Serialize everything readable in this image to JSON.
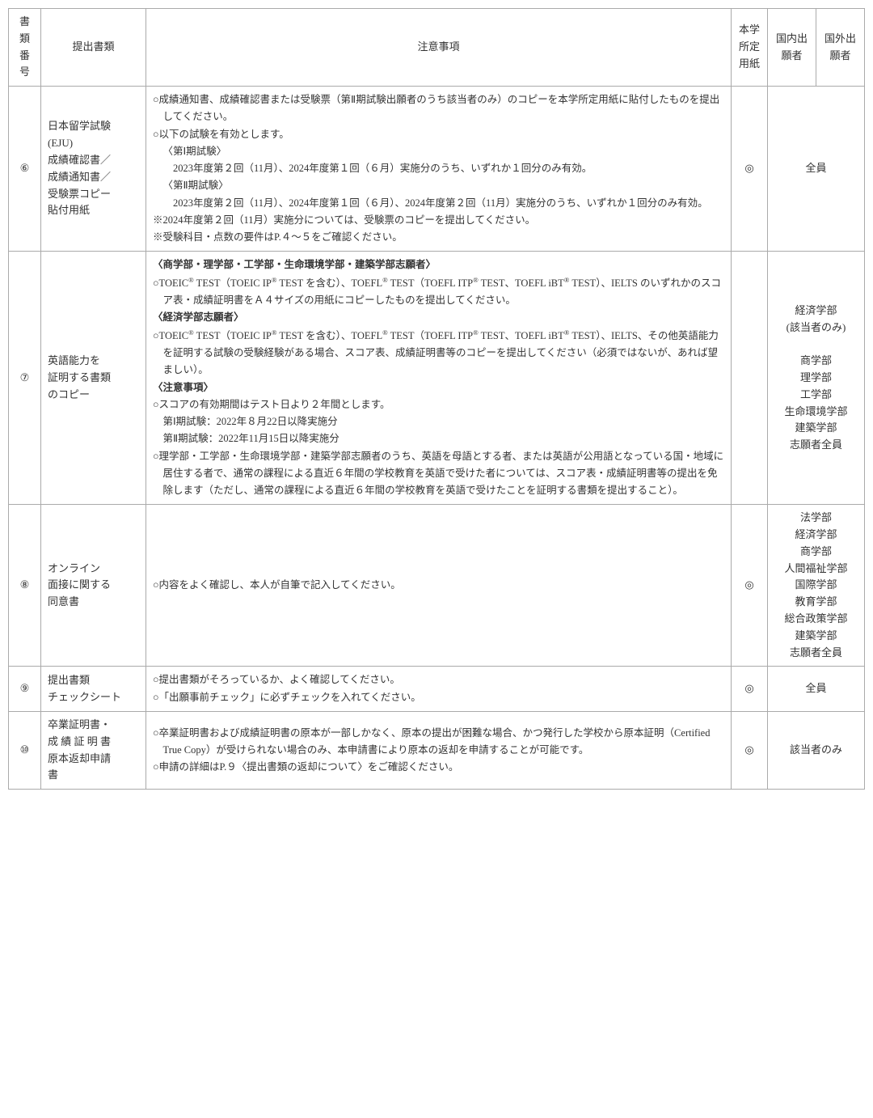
{
  "headers": {
    "num": "書類番号",
    "doc": "提出書類",
    "notes": "注意事項",
    "form": "本学所定用紙",
    "domestic": "国内出願者",
    "overseas": "国外出願者"
  },
  "rows": [
    {
      "num": "⑥",
      "doc": "日本留学試験\n(EJU)\n成績確認書／\n成績通知書／\n受験票コピー\n貼付用紙",
      "form": "◎",
      "applicants": "全員",
      "notes": [
        {
          "cls": "hanging",
          "t": "○成績通知書、成績確認書または受験票（第Ⅱ期試験出願者のうち該当者のみ）のコピーを本学所定用紙に貼付したものを提出してください。"
        },
        {
          "cls": "",
          "t": "○以下の試験を有効とします。"
        },
        {
          "cls": "indent",
          "t": "〈第Ⅰ期試験〉"
        },
        {
          "cls": "indent2",
          "t": "2023年度第２回（11月）、2024年度第１回（６月）実施分のうち、いずれか１回分のみ有効。"
        },
        {
          "cls": "indent",
          "t": "〈第Ⅱ期試験〉"
        },
        {
          "cls": "indent2",
          "t": "2023年度第２回（11月）、2024年度第１回（６月）、2024年度第２回（11月）実施分のうち、いずれか１回分のみ有効。"
        },
        {
          "cls": "hanging",
          "t": "※2024年度第２回（11月）実施分については、受験票のコピーを提出してください。"
        },
        {
          "cls": "",
          "t": "※受験科目・点数の要件はP.４～５をご確認ください。"
        }
      ]
    },
    {
      "num": "⑦",
      "doc": "英語能力を\n証明する書類\nのコピー",
      "form": "",
      "applicants": "経済学部\n(該当者のみ)\n\n商学部\n理学部\n工学部\n生命環境学部\n建築学部\n志願者全員",
      "notes": [
        {
          "cls": "bold",
          "t": "〈商学部・理学部・工学部・生命環境学部・建築学部志願者〉"
        },
        {
          "cls": "hanging",
          "html": "○TOEIC<sup>®</sup> TEST（TOEIC IP<sup>®</sup> TEST を含む）、TOEFL<sup>®</sup> TEST（TOEFL ITP<sup>®</sup> TEST、TOEFL iBT<sup>®</sup> TEST）、IELTS のいずれかのスコア表・成績証明書をＡ４サイズの用紙にコピーしたものを提出してください。"
        },
        {
          "cls": "bold",
          "t": "〈経済学部志願者〉"
        },
        {
          "cls": "hanging",
          "html": "○TOEIC<sup>®</sup> TEST（TOEIC IP<sup>®</sup> TEST を含む）、TOEFL<sup>®</sup> TEST（TOEFL ITP<sup>®</sup> TEST、TOEFL iBT<sup>®</sup> TEST）、IELTS、その他英語能力を証明する試験の受験経験がある場合、スコア表、成績証明書等のコピーを提出してください（必須ではないが、あれば望ましい）。"
        },
        {
          "cls": "",
          "t": " "
        },
        {
          "cls": "bold",
          "t": "〈注意事項〉"
        },
        {
          "cls": "",
          "t": "○スコアの有効期間はテスト日より２年間とします。"
        },
        {
          "cls": "indent",
          "t": "第Ⅰ期試験：2022年８月22日以降実施分"
        },
        {
          "cls": "indent",
          "t": "第Ⅱ期試験：2022年11月15日以降実施分"
        },
        {
          "cls": "hanging",
          "t": "○理学部・工学部・生命環境学部・建築学部志願者のうち、英語を母語とする者、または英語が公用語となっている国・地域に居住する者で、通常の課程による直近６年間の学校教育を英語で受けた者については、スコア表・成績証明書等の提出を免除します（ただし、通常の課程による直近６年間の学校教育を英語で受けたことを証明する書類を提出すること）。"
        }
      ]
    },
    {
      "num": "⑧",
      "doc": "オンライン\n面接に関する\n同意書",
      "form": "◎",
      "applicants": "法学部\n経済学部\n商学部\n人間福祉学部\n国際学部\n教育学部\n総合政策学部\n建築学部\n志願者全員",
      "notes": [
        {
          "cls": "",
          "t": "○内容をよく確認し、本人が自筆で記入してください。"
        }
      ]
    },
    {
      "num": "⑨",
      "doc": "提出書類\nチェックシート",
      "form": "◎",
      "applicants": "全員",
      "notes": [
        {
          "cls": "",
          "t": "○提出書類がそろっているか、よく確認してください。"
        },
        {
          "cls": "",
          "t": "○「出願事前チェック」に必ずチェックを入れてください。"
        }
      ]
    },
    {
      "num": "⑩",
      "doc": "卒業証明書・\n成 績 証 明 書\n原本返却申請\n書",
      "form": "◎",
      "applicants": "該当者のみ",
      "notes": [
        {
          "cls": "hanging",
          "t": "○卒業証明書および成績証明書の原本が一部しかなく、原本の提出が困難な場合、かつ発行した学校から原本証明（Certified True Copy）が受けられない場合のみ、本申請書により原本の返却を申請することが可能です。"
        },
        {
          "cls": "",
          "t": "○申請の詳細はP.９〈提出書類の返却について〉をご確認ください。"
        }
      ]
    }
  ]
}
